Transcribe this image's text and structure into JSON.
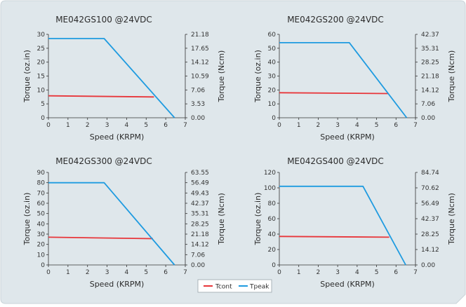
{
  "colors": {
    "background": "#dfe7eb",
    "tcont": "#e8363a",
    "tpeak": "#1f9be0",
    "axis": "#333333"
  },
  "legend": {
    "tcont_label": "Tcont",
    "tpeak_label": "Tpeak",
    "placement": "bottom-center"
  },
  "chart_data": [
    {
      "type": "line",
      "title": "ME042GS100 @24VDC",
      "xlabel": "Speed (KRPM)",
      "ylabel": "Torque (oz.in)",
      "y2label": "Torque (Ncm)",
      "xlim": [
        0,
        7
      ],
      "ylim": [
        0,
        30
      ],
      "xticks": [
        "0",
        "1",
        "2",
        "3",
        "4",
        "5",
        "6",
        "7"
      ],
      "yticks": [
        "0",
        "5",
        "10",
        "15",
        "20",
        "25",
        "30"
      ],
      "y2ticks": [
        "0.00",
        "3.53",
        "7.06",
        "10.59",
        "14.12",
        "17.65",
        "21.18"
      ],
      "series": [
        {
          "name": "Tcont",
          "x": [
            0,
            5.4
          ],
          "y": [
            7.9,
            7.5
          ]
        },
        {
          "name": "Tpeak",
          "x": [
            0,
            2.85,
            6.45
          ],
          "y": [
            28.5,
            28.5,
            0
          ]
        }
      ]
    },
    {
      "type": "line",
      "title": "ME042GS200 @24VDC",
      "xlabel": "Speed (KRPM)",
      "ylabel": "Torque (oz.in)",
      "y2label": "Torque (Ncm)",
      "xlim": [
        0,
        7
      ],
      "ylim": [
        0,
        60
      ],
      "xticks": [
        "0",
        "1",
        "2",
        "3",
        "4",
        "5",
        "6",
        "7"
      ],
      "yticks": [
        "0",
        "10",
        "20",
        "30",
        "40",
        "50",
        "60"
      ],
      "y2ticks": [
        "0.00",
        "7.06",
        "14.12",
        "21.18",
        "28.25",
        "35.31",
        "42.37"
      ],
      "series": [
        {
          "name": "Tcont",
          "x": [
            0,
            5.6
          ],
          "y": [
            18,
            17.4
          ]
        },
        {
          "name": "Tpeak",
          "x": [
            0,
            3.6,
            6.55
          ],
          "y": [
            54,
            54,
            0
          ]
        }
      ]
    },
    {
      "type": "line",
      "title": "ME042GS300 @24VDC",
      "xlabel": "Speed (KRPM)",
      "ylabel": "Torque (oz.in)",
      "y2label": "Torque (Ncm)",
      "xlim": [
        0,
        7
      ],
      "ylim": [
        0,
        90
      ],
      "xticks": [
        "0",
        "1",
        "2",
        "3",
        "4",
        "5",
        "6",
        "7"
      ],
      "yticks": [
        "0",
        "10",
        "20",
        "30",
        "40",
        "50",
        "60",
        "70",
        "80",
        "90"
      ],
      "y2ticks": [
        "0.00",
        "7.06",
        "14.12",
        "21.18",
        "28.25",
        "35.31",
        "42.37",
        "49.43",
        "56.49",
        "63.55"
      ],
      "series": [
        {
          "name": "Tcont",
          "x": [
            0,
            5.35
          ],
          "y": [
            27,
            25.6
          ]
        },
        {
          "name": "Tpeak",
          "x": [
            0,
            2.85,
            6.45
          ],
          "y": [
            80,
            80,
            0
          ]
        }
      ]
    },
    {
      "type": "line",
      "title": "ME042GS400 @24VDC",
      "xlabel": "Speed (KRPM)",
      "ylabel": "Torque (oz.in)",
      "y2label": "Torque (Ncm)",
      "xlim": [
        0,
        7
      ],
      "ylim": [
        0,
        120
      ],
      "xticks": [
        "0",
        "1",
        "2",
        "3",
        "4",
        "5",
        "6",
        "7"
      ],
      "yticks": [
        "0",
        "20",
        "40",
        "60",
        "80",
        "100",
        "120"
      ],
      "y2ticks": [
        "0.00",
        "14.12",
        "28.25",
        "42.37",
        "56.49",
        "70.62",
        "84.74"
      ],
      "series": [
        {
          "name": "Tcont",
          "x": [
            0,
            5.65
          ],
          "y": [
            37,
            36
          ]
        },
        {
          "name": "Tpeak",
          "x": [
            0,
            4.3,
            6.5
          ],
          "y": [
            102,
            102,
            0
          ]
        }
      ]
    }
  ]
}
